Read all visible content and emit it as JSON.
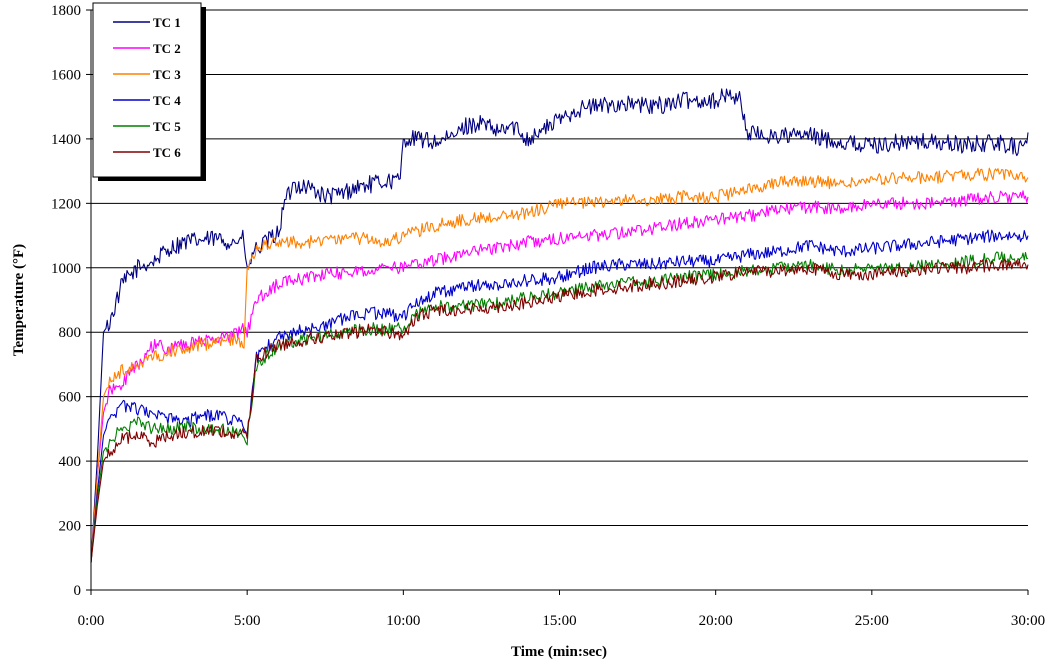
{
  "chart_data": {
    "type": "line",
    "title": "",
    "xlabel": "Time (min:sec)",
    "ylabel": "Temperature (°F)",
    "xlim": [
      0,
      30
    ],
    "ylim": [
      0,
      1800
    ],
    "x_ticks": [
      0,
      5,
      10,
      15,
      20,
      25,
      30
    ],
    "x_tick_labels": [
      "0:00",
      "5:00",
      "10:00",
      "15:00",
      "20:00",
      "25:00",
      "30:00"
    ],
    "y_ticks": [
      0,
      200,
      400,
      600,
      800,
      1000,
      1200,
      1400,
      1600,
      1800
    ],
    "y_tick_labels": [
      "0",
      "200",
      "400",
      "600",
      "800",
      "1000",
      "1200",
      "1400",
      "1600",
      "1800"
    ],
    "grid": "horizontal",
    "legend_position": "top-left",
    "x_unit": "minutes",
    "series": [
      {
        "name": "TC 1",
        "color": "#000080",
        "points": [
          [
            0,
            85
          ],
          [
            0.2,
            400
          ],
          [
            0.4,
            800
          ],
          [
            0.6,
            830
          ],
          [
            1,
            950
          ],
          [
            1.5,
            1000
          ],
          [
            2,
            1020
          ],
          [
            2.5,
            1060
          ],
          [
            3,
            1080
          ],
          [
            3.5,
            1085
          ],
          [
            4,
            1090
          ],
          [
            4.5,
            1080
          ],
          [
            4.9,
            1090
          ],
          [
            5,
            980
          ],
          [
            5.2,
            1050
          ],
          [
            5.5,
            1070
          ],
          [
            6,
            1110
          ],
          [
            6.2,
            1200
          ],
          [
            6.5,
            1260
          ],
          [
            7,
            1250
          ],
          [
            7.5,
            1220
          ],
          [
            8,
            1230
          ],
          [
            8.5,
            1250
          ],
          [
            9,
            1260
          ],
          [
            9.5,
            1270
          ],
          [
            9.9,
            1270
          ],
          [
            10,
            1400
          ],
          [
            10.5,
            1400
          ],
          [
            11,
            1390
          ],
          [
            11.5,
            1400
          ],
          [
            12,
            1440
          ],
          [
            12.5,
            1450
          ],
          [
            13,
            1420
          ],
          [
            13.5,
            1440
          ],
          [
            14,
            1400
          ],
          [
            15,
            1460
          ],
          [
            15.5,
            1490
          ],
          [
            16,
            1500
          ],
          [
            17,
            1510
          ],
          [
            18,
            1500
          ],
          [
            19,
            1520
          ],
          [
            20,
            1520
          ],
          [
            20.5,
            1540
          ],
          [
            20.8,
            1520
          ],
          [
            21,
            1420
          ],
          [
            21.5,
            1410
          ],
          [
            22,
            1410
          ],
          [
            22.5,
            1410
          ],
          [
            23,
            1410
          ],
          [
            24,
            1390
          ],
          [
            25,
            1380
          ],
          [
            26,
            1390
          ],
          [
            27,
            1390
          ],
          [
            28,
            1380
          ],
          [
            29,
            1390
          ],
          [
            29.8,
            1370
          ],
          [
            30,
            1420
          ]
        ]
      },
      {
        "name": "TC 2",
        "color": "#ff00ff",
        "points": [
          [
            0,
            85
          ],
          [
            0.2,
            350
          ],
          [
            0.4,
            550
          ],
          [
            0.6,
            620
          ],
          [
            1,
            640
          ],
          [
            1.5,
            700
          ],
          [
            2,
            760
          ],
          [
            2.5,
            750
          ],
          [
            3,
            760
          ],
          [
            3.5,
            770
          ],
          [
            4,
            780
          ],
          [
            4.5,
            790
          ],
          [
            4.9,
            810
          ],
          [
            5,
            800
          ],
          [
            5.3,
            900
          ],
          [
            6,
            950
          ],
          [
            7,
            970
          ],
          [
            8,
            985
          ],
          [
            9,
            995
          ],
          [
            10,
            1000
          ],
          [
            11,
            1020
          ],
          [
            12,
            1050
          ],
          [
            13,
            1060
          ],
          [
            14,
            1080
          ],
          [
            15,
            1090
          ],
          [
            16,
            1100
          ],
          [
            17,
            1110
          ],
          [
            18,
            1120
          ],
          [
            19,
            1140
          ],
          [
            20,
            1150
          ],
          [
            21,
            1160
          ],
          [
            22,
            1180
          ],
          [
            23,
            1190
          ],
          [
            24,
            1180
          ],
          [
            25,
            1200
          ],
          [
            26,
            1200
          ],
          [
            27,
            1200
          ],
          [
            28,
            1210
          ],
          [
            29,
            1220
          ],
          [
            30,
            1220
          ]
        ]
      },
      {
        "name": "TC 3",
        "color": "#ff8000",
        "points": [
          [
            0,
            85
          ],
          [
            0.2,
            350
          ],
          [
            0.4,
            600
          ],
          [
            0.6,
            650
          ],
          [
            1,
            680
          ],
          [
            1.5,
            700
          ],
          [
            2,
            720
          ],
          [
            2.5,
            740
          ],
          [
            3,
            750
          ],
          [
            3.5,
            760
          ],
          [
            4,
            770
          ],
          [
            4.5,
            780
          ],
          [
            4.9,
            770
          ],
          [
            5,
            1000
          ],
          [
            5.3,
            1060
          ],
          [
            6,
            1080
          ],
          [
            7,
            1080
          ],
          [
            8,
            1090
          ],
          [
            9,
            1090
          ],
          [
            9.5,
            1080
          ],
          [
            10,
            1100
          ],
          [
            11,
            1130
          ],
          [
            12,
            1150
          ],
          [
            13,
            1160
          ],
          [
            14,
            1170
          ],
          [
            15,
            1200
          ],
          [
            16,
            1200
          ],
          [
            17,
            1210
          ],
          [
            18,
            1210
          ],
          [
            19,
            1220
          ],
          [
            20,
            1220
          ],
          [
            21,
            1240
          ],
          [
            22,
            1270
          ],
          [
            23,
            1270
          ],
          [
            24,
            1260
          ],
          [
            25,
            1270
          ],
          [
            26,
            1280
          ],
          [
            27,
            1280
          ],
          [
            28,
            1290
          ],
          [
            29,
            1290
          ],
          [
            30,
            1280
          ]
        ]
      },
      {
        "name": "TC 4",
        "color": "#0000cc",
        "points": [
          [
            0,
            85
          ],
          [
            0.2,
            300
          ],
          [
            0.4,
            480
          ],
          [
            0.6,
            530
          ],
          [
            1,
            570
          ],
          [
            1.5,
            560
          ],
          [
            2,
            540
          ],
          [
            2.5,
            530
          ],
          [
            3,
            520
          ],
          [
            3.5,
            540
          ],
          [
            4,
            540
          ],
          [
            4.5,
            530
          ],
          [
            4.9,
            520
          ],
          [
            5,
            480
          ],
          [
            5.3,
            720
          ],
          [
            6,
            790
          ],
          [
            7,
            810
          ],
          [
            8,
            840
          ],
          [
            9,
            860
          ],
          [
            10,
            850
          ],
          [
            10.5,
            900
          ],
          [
            11,
            920
          ],
          [
            12,
            940
          ],
          [
            13,
            950
          ],
          [
            14,
            960
          ],
          [
            15,
            970
          ],
          [
            16,
            1000
          ],
          [
            17,
            1010
          ],
          [
            18,
            1010
          ],
          [
            19,
            1020
          ],
          [
            20,
            1020
          ],
          [
            21,
            1040
          ],
          [
            22,
            1050
          ],
          [
            23,
            1070
          ],
          [
            24,
            1050
          ],
          [
            25,
            1060
          ],
          [
            26,
            1070
          ],
          [
            27,
            1080
          ],
          [
            28,
            1090
          ],
          [
            29,
            1100
          ],
          [
            30,
            1100
          ]
        ]
      },
      {
        "name": "TC 5",
        "color": "#008000",
        "points": [
          [
            0,
            85
          ],
          [
            0.2,
            280
          ],
          [
            0.4,
            430
          ],
          [
            0.6,
            460
          ],
          [
            1,
            500
          ],
          [
            1.5,
            520
          ],
          [
            2,
            500
          ],
          [
            2.5,
            500
          ],
          [
            3,
            510
          ],
          [
            3.5,
            500
          ],
          [
            4,
            500
          ],
          [
            4.5,
            490
          ],
          [
            4.9,
            480
          ],
          [
            5,
            470
          ],
          [
            5.3,
            700
          ],
          [
            6,
            760
          ],
          [
            7,
            780
          ],
          [
            8,
            800
          ],
          [
            9,
            810
          ],
          [
            10,
            810
          ],
          [
            10.5,
            860
          ],
          [
            11,
            880
          ],
          [
            12,
            880
          ],
          [
            13,
            890
          ],
          [
            14,
            910
          ],
          [
            15,
            920
          ],
          [
            16,
            940
          ],
          [
            17,
            950
          ],
          [
            18,
            960
          ],
          [
            19,
            970
          ],
          [
            20,
            980
          ],
          [
            21,
            990
          ],
          [
            22,
            1000
          ],
          [
            23,
            1010
          ],
          [
            24,
            990
          ],
          [
            25,
            1000
          ],
          [
            26,
            1000
          ],
          [
            27,
            1010
          ],
          [
            28,
            1020
          ],
          [
            29,
            1030
          ],
          [
            30,
            1030
          ]
        ]
      },
      {
        "name": "TC 6",
        "color": "#800000",
        "points": [
          [
            0,
            85
          ],
          [
            0.2,
            260
          ],
          [
            0.4,
            400
          ],
          [
            0.6,
            430
          ],
          [
            1,
            470
          ],
          [
            1.5,
            480
          ],
          [
            2,
            460
          ],
          [
            2.5,
            480
          ],
          [
            3,
            490
          ],
          [
            3.5,
            490
          ],
          [
            4,
            500
          ],
          [
            4.5,
            480
          ],
          [
            4.9,
            490
          ],
          [
            5,
            470
          ],
          [
            5.3,
            720
          ],
          [
            6,
            760
          ],
          [
            7,
            780
          ],
          [
            8,
            790
          ],
          [
            9,
            810
          ],
          [
            10,
            790
          ],
          [
            10.5,
            850
          ],
          [
            11,
            870
          ],
          [
            12,
            870
          ],
          [
            13,
            880
          ],
          [
            14,
            890
          ],
          [
            15,
            910
          ],
          [
            16,
            930
          ],
          [
            17,
            940
          ],
          [
            18,
            950
          ],
          [
            19,
            960
          ],
          [
            20,
            970
          ],
          [
            21,
            990
          ],
          [
            22,
            990
          ],
          [
            23,
            1000
          ],
          [
            24,
            980
          ],
          [
            25,
            980
          ],
          [
            26,
            990
          ],
          [
            27,
            1000
          ],
          [
            28,
            1000
          ],
          [
            29,
            1010
          ],
          [
            30,
            1010
          ]
        ]
      }
    ]
  }
}
